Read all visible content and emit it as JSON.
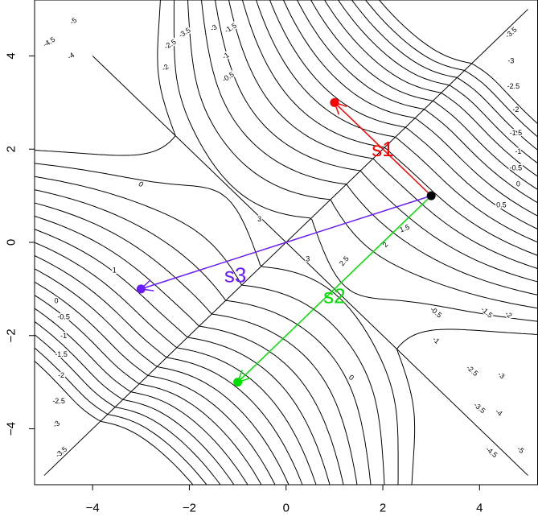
{
  "chart_data": {
    "type": "contour",
    "title": "",
    "xlabel": "",
    "ylabel": "",
    "xlim": [
      -5.2,
      5.2
    ],
    "ylim": [
      -5.2,
      5.2
    ],
    "x_ticks": [
      -4,
      -2,
      0,
      2,
      4
    ],
    "y_ticks": [
      -4,
      -2,
      0,
      2,
      4
    ],
    "x_tick_labels": [
      "−4",
      "−2",
      "0",
      "2",
      "4"
    ],
    "y_tick_labels": [
      "−4",
      "−2",
      "0",
      "2",
      "4"
    ],
    "contour_levels": [
      -5,
      -4.5,
      -4,
      -3.5,
      -3,
      -2.5,
      -2,
      -1.5,
      -1,
      -0.5,
      0,
      0.5,
      1,
      1.5,
      2,
      2.5,
      3
    ],
    "contour_labels": [
      {
        "text": "-5",
        "x": -4.4,
        "y": 4.75,
        "angle": -32
      },
      {
        "text": "-4.5",
        "x": -4.9,
        "y": 4.3,
        "angle": -32
      },
      {
        "text": "-4",
        "x": -4.45,
        "y": 4.0,
        "angle": -32
      },
      {
        "text": "-3.5",
        "x": -2.1,
        "y": 4.5,
        "angle": -32
      },
      {
        "text": "-3",
        "x": -1.5,
        "y": 4.6,
        "angle": -32
      },
      {
        "text": "-2.5",
        "x": -2.4,
        "y": 4.25,
        "angle": -32
      },
      {
        "text": "-2",
        "x": -2.5,
        "y": 3.75,
        "angle": -32
      },
      {
        "text": "-1.5",
        "x": -1.15,
        "y": 4.6,
        "angle": -32
      },
      {
        "text": "-1",
        "x": -1.25,
        "y": 4.0,
        "angle": -32
      },
      {
        "text": "-0.5",
        "x": -1.2,
        "y": 3.55,
        "angle": -32
      },
      {
        "text": "0",
        "x": -3.0,
        "y": 1.25,
        "angle": 40
      },
      {
        "text": "1",
        "x": -3.55,
        "y": -0.6,
        "angle": 0
      },
      {
        "text": "3",
        "x": -0.55,
        "y": 0.5,
        "angle": 0
      },
      {
        "text": "3",
        "x": 0.45,
        "y": -0.35,
        "angle": 0
      },
      {
        "text": "2.5",
        "x": 1.2,
        "y": -0.4,
        "angle": -50
      },
      {
        "text": "2",
        "x": 2.05,
        "y": -0.05,
        "angle": -50
      },
      {
        "text": "1.5",
        "x": 2.45,
        "y": 0.3,
        "angle": -20
      },
      {
        "text": "0.5",
        "x": 4.45,
        "y": 0.8,
        "angle": 0
      },
      {
        "text": "0",
        "x": 4.8,
        "y": 1.25,
        "angle": 0
      },
      {
        "text": "-0.5",
        "x": 4.75,
        "y": 1.6,
        "angle": 0
      },
      {
        "text": "-1",
        "x": 4.8,
        "y": 1.95,
        "angle": 0
      },
      {
        "text": "-1.5",
        "x": 4.75,
        "y": 2.35,
        "angle": 0
      },
      {
        "text": "-2",
        "x": 4.75,
        "y": 2.85,
        "angle": 0
      },
      {
        "text": "-2.5",
        "x": 4.7,
        "y": 3.35,
        "angle": 0
      },
      {
        "text": "-3",
        "x": 4.65,
        "y": 3.9,
        "angle": 0
      },
      {
        "text": "-3.5",
        "x": 4.65,
        "y": 4.5,
        "angle": -40
      },
      {
        "text": "0",
        "x": -4.75,
        "y": -1.25,
        "angle": 0
      },
      {
        "text": "-0.5",
        "x": -4.6,
        "y": -1.6,
        "angle": 0
      },
      {
        "text": "-1",
        "x": -4.6,
        "y": -2.0,
        "angle": 0
      },
      {
        "text": "-1.5",
        "x": -4.65,
        "y": -2.4,
        "angle": 0
      },
      {
        "text": "-2",
        "x": -4.65,
        "y": -2.85,
        "angle": 0
      },
      {
        "text": "-2.5",
        "x": -4.7,
        "y": -3.4,
        "angle": 0
      },
      {
        "text": "-3",
        "x": -4.75,
        "y": -3.9,
        "angle": -40
      },
      {
        "text": "-3.5",
        "x": -4.65,
        "y": -4.5,
        "angle": -40
      },
      {
        "text": "0",
        "x": 1.35,
        "y": -2.9,
        "angle": 40
      },
      {
        "text": "-0.5",
        "x": 3.1,
        "y": -1.5,
        "angle": 40
      },
      {
        "text": "-1",
        "x": 3.1,
        "y": -2.1,
        "angle": 40
      },
      {
        "text": "-1.5",
        "x": 4.15,
        "y": -1.5,
        "angle": 40
      },
      {
        "text": "-2",
        "x": 4.6,
        "y": -1.55,
        "angle": 40
      },
      {
        "text": "-2.5",
        "x": 3.85,
        "y": -2.75,
        "angle": 40
      },
      {
        "text": "-3",
        "x": 4.45,
        "y": -2.85,
        "angle": 40
      },
      {
        "text": "-3.5",
        "x": 4.0,
        "y": -3.55,
        "angle": 40
      },
      {
        "text": "-4",
        "x": 4.4,
        "y": -3.65,
        "angle": 40
      },
      {
        "text": "-4.5",
        "x": 4.25,
        "y": -4.5,
        "angle": 40
      },
      {
        "text": "-5",
        "x": 4.85,
        "y": -4.45,
        "angle": 40
      }
    ],
    "diagonals": [
      {
        "from": [
          -5,
          -5
        ],
        "to": [
          5,
          5
        ]
      },
      {
        "from": [
          -4,
          4
        ],
        "to": [
          5,
          -5
        ]
      }
    ],
    "origin_point": {
      "x": 3,
      "y": 1,
      "color": "#000000"
    },
    "vectors": [
      {
        "name": "s1",
        "to": [
          1,
          3
        ],
        "color": "#ff0000",
        "label_pos": [
          2.0,
          2.0
        ]
      },
      {
        "name": "s2",
        "to": [
          -1,
          -3
        ],
        "color": "#00e000",
        "label_pos": [
          1.0,
          -1.15
        ]
      },
      {
        "name": "s3",
        "to": [
          -3,
          -1
        ],
        "color": "#6a1cff",
        "label_pos": [
          -1.05,
          -0.7
        ]
      }
    ]
  }
}
